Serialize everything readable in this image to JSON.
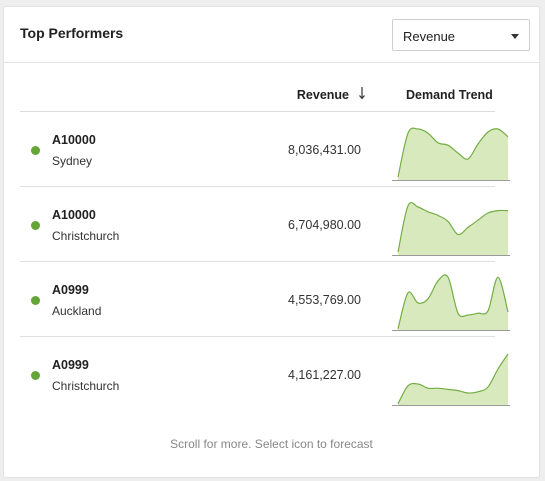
{
  "card": {
    "title": "Top Performers",
    "metric_select": {
      "selected": "Revenue"
    }
  },
  "table": {
    "columns": {
      "revenue": "Revenue",
      "trend": "Demand Trend"
    },
    "sort": {
      "column": "Revenue",
      "direction": "descending",
      "icon": "arrow-down-icon"
    },
    "rows": [
      {
        "id": "A10000",
        "city": "Sydney",
        "revenue": "8,036,431.00",
        "status_color": "#63a536",
        "trend": [
          0.05,
          0.78,
          0.85,
          0.78,
          0.62,
          0.58,
          0.45,
          0.35,
          0.6,
          0.8,
          0.85,
          0.72
        ]
      },
      {
        "id": "A10000",
        "city": "Christchurch",
        "revenue": "6,704,980.00",
        "status_color": "#63a536",
        "trend": [
          0.05,
          0.82,
          0.8,
          0.72,
          0.66,
          0.56,
          0.34,
          0.46,
          0.58,
          0.7,
          0.74,
          0.74
        ]
      },
      {
        "id": "A0999",
        "city": "Auckland",
        "revenue": "4,553,769.00",
        "status_color": "#63a536",
        "trend": [
          0.02,
          0.62,
          0.45,
          0.52,
          0.82,
          0.88,
          0.28,
          0.25,
          0.28,
          0.32,
          0.88,
          0.3
        ]
      },
      {
        "id": "A0999",
        "city": "Christchurch",
        "revenue": "4,161,227.00",
        "status_color": "#63a536",
        "trend": [
          0.02,
          0.32,
          0.35,
          0.28,
          0.28,
          0.26,
          0.24,
          0.2,
          0.22,
          0.3,
          0.6,
          0.85
        ]
      }
    ]
  },
  "footer": {
    "note": "Scroll for more. Select icon to forecast"
  },
  "colors": {
    "accent": "#63a536",
    "spark_fill": "#d8eabd",
    "spark_stroke": "#74ad45"
  }
}
